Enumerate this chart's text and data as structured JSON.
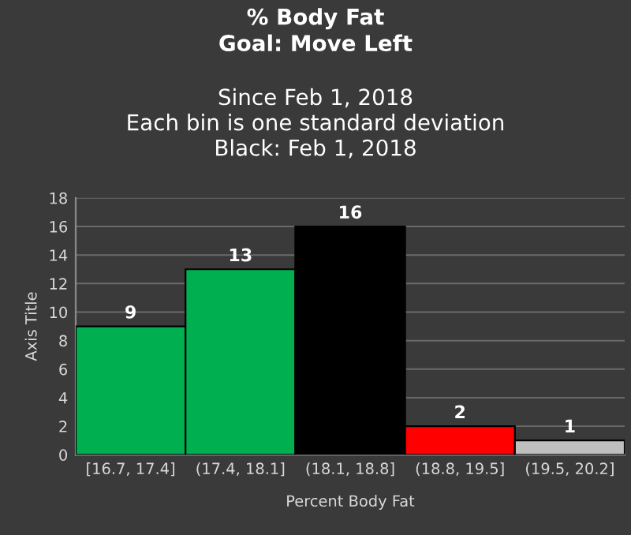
{
  "chart_data": {
    "type": "bar",
    "title": "% Body Fat\nGoal: Move Left",
    "subtitle": "Since Feb 1, 2018\nEach bin is one standard deviation\nBlack: Feb 1, 2018",
    "xlabel": "Percent Body Fat",
    "ylabel": "Axis Title",
    "categories": [
      "[16.7, 17.4]",
      "(17.4, 18.1]",
      "(18.1, 18.8]",
      "(18.8, 19.5]",
      "(19.5, 20.2]"
    ],
    "values": [
      9,
      13,
      16,
      2,
      1
    ],
    "colors": [
      "#00b050",
      "#00b050",
      "#000000",
      "#ff0000",
      "#bfbfbf"
    ],
    "ylim": [
      0,
      18
    ],
    "yticks": [
      0,
      2,
      4,
      6,
      8,
      10,
      12,
      14,
      16,
      18
    ],
    "grid": "y",
    "data_labels": true
  }
}
